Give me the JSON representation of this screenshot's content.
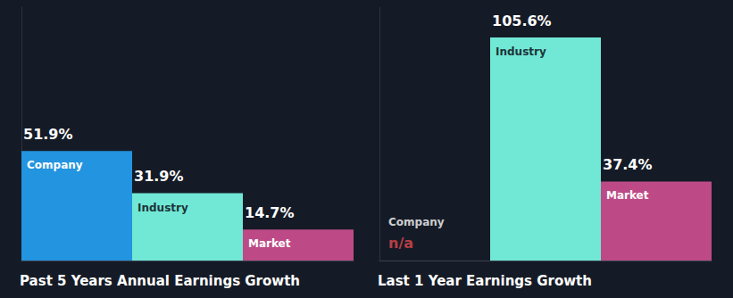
{
  "chart_data": [
    {
      "type": "bar",
      "title": "Past 5 Years Annual Earnings Growth",
      "categories": [
        "Company",
        "Industry",
        "Market"
      ],
      "values": [
        51.9,
        31.9,
        14.7
      ],
      "value_labels": [
        "51.9%",
        "31.9%",
        "14.7%"
      ],
      "colors": [
        "#2394df",
        "#71e8d6",
        "#bd4a86"
      ],
      "ylim": [
        0,
        120
      ],
      "data_labels": true,
      "tick_labels": false,
      "grid": false
    },
    {
      "type": "bar",
      "title": "Last 1 Year Earnings Growth",
      "categories": [
        "Company",
        "Industry",
        "Market"
      ],
      "values": [
        null,
        105.6,
        37.4
      ],
      "value_labels": [
        "n/a",
        "105.6%",
        "37.4%"
      ],
      "colors": [
        "#2394df",
        "#71e8d6",
        "#bd4a86"
      ],
      "ylim": [
        0,
        120
      ],
      "data_labels": true,
      "tick_labels": false,
      "grid": false
    }
  ]
}
